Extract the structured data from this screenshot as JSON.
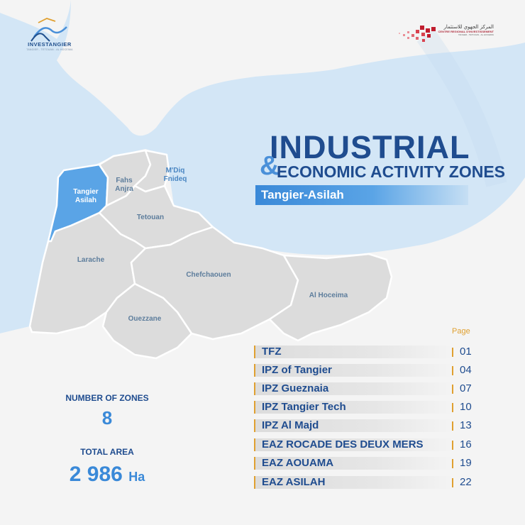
{
  "logos": {
    "left_brand": "INVESTANGIER",
    "left_tagline": "TANGIER - TETOUAN - AL HOCEIMA",
    "right_arabic": "المركز الجهوي للاستثمار",
    "right_name_fr": "CENTRE REGIONAL D'INVESTISSEMENT",
    "right_region": "TANGER - TETOUAN - AL HOCEIMA"
  },
  "header": {
    "title_line1": "INDUSTRIAL",
    "ampersand": "&",
    "title_line2": "ECONOMIC ACTIVITY ZONES",
    "subtitle": "Tangier-Asilah"
  },
  "map": {
    "regions": [
      {
        "id": "tangier-asilah",
        "label": "Tangier\nAsilah",
        "highlighted": true
      },
      {
        "id": "fahs-anjra",
        "label": "Fahs\nAnjra",
        "highlighted": false
      },
      {
        "id": "mdiq-fnideq",
        "label": "M'Diq\nFnideq",
        "highlighted": false
      },
      {
        "id": "tetouan",
        "label": "Tetouan",
        "highlighted": false
      },
      {
        "id": "larache",
        "label": "Larache",
        "highlighted": false
      },
      {
        "id": "chefchaouen",
        "label": "Chefchaouen",
        "highlighted": false
      },
      {
        "id": "ouezzane",
        "label": "Ouezzane",
        "highlighted": false
      },
      {
        "id": "al-hoceima",
        "label": "Al Hoceima",
        "highlighted": false
      }
    ]
  },
  "toc": {
    "page_header": "Page",
    "items": [
      {
        "name": "TFZ",
        "page": "01"
      },
      {
        "name": "IPZ of Tangier",
        "page": "04"
      },
      {
        "name": "IPZ Gueznaia",
        "page": "07"
      },
      {
        "name": "IPZ Tangier Tech",
        "page": "10"
      },
      {
        "name": "IPZ Al Majd",
        "page": "13"
      },
      {
        "name": "EAZ ROCADE DES DEUX MERS",
        "page": "16"
      },
      {
        "name": "EAZ AOUAMA",
        "page": "19"
      },
      {
        "name": "EAZ ASILAH",
        "page": "22"
      }
    ]
  },
  "stats": {
    "zones_label": "NUMBER OF ZONES",
    "zones_value": "8",
    "area_label": "TOTAL AREA",
    "area_value": "2 986",
    "area_unit": "Ha"
  },
  "colors": {
    "sea": "#d3e6f6",
    "land": "#f4f4f4",
    "region": "#dcdcdc",
    "highlight": "#5aa4e6",
    "navy": "#1f4c8f",
    "accent": "#e0a030"
  }
}
